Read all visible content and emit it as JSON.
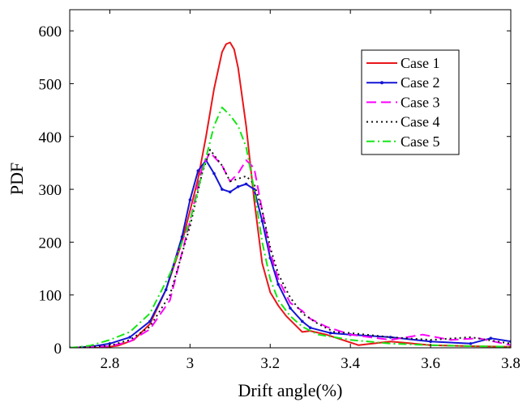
{
  "chart_data": {
    "type": "line",
    "xlabel": "Drift angle(%)",
    "ylabel": "PDF",
    "xlim": [
      2.7,
      3.8
    ],
    "ylim": [
      0,
      640
    ],
    "xticks": [
      2.8,
      3,
      3.2,
      3.4,
      3.6,
      3.8
    ],
    "xtick_labels": [
      "2.8",
      "3",
      "3.2",
      "3.4",
      "3.6",
      "3.8"
    ],
    "yticks": [
      0,
      100,
      200,
      300,
      400,
      500,
      600
    ],
    "ytick_labels": [
      "0",
      "100",
      "200",
      "300",
      "400",
      "500",
      "600"
    ],
    "grid": false,
    "legend_position": "top-right",
    "series": [
      {
        "name": "Case 1",
        "color": "#e8161a",
        "dash": "solid",
        "marker": "none",
        "x": [
          2.7,
          2.78,
          2.82,
          2.86,
          2.9,
          2.94,
          2.98,
          3.0,
          3.02,
          3.04,
          3.06,
          3.08,
          3.09,
          3.1,
          3.11,
          3.12,
          3.14,
          3.16,
          3.18,
          3.2,
          3.22,
          3.24,
          3.26,
          3.28,
          3.3,
          3.34,
          3.38,
          3.42,
          3.5,
          3.6,
          3.7,
          3.8
        ],
        "y": [
          0,
          0,
          4,
          15,
          45,
          110,
          200,
          260,
          320,
          400,
          490,
          560,
          575,
          578,
          565,
          530,
          420,
          280,
          160,
          105,
          80,
          60,
          45,
          30,
          32,
          25,
          15,
          5,
          12,
          5,
          3,
          2
        ]
      },
      {
        "name": "Case 2",
        "color": "#1414d6",
        "dash": "solid",
        "marker": "dot",
        "x": [
          2.7,
          2.75,
          2.8,
          2.85,
          2.9,
          2.94,
          2.98,
          3.0,
          3.02,
          3.04,
          3.06,
          3.08,
          3.1,
          3.12,
          3.14,
          3.16,
          3.18,
          3.2,
          3.22,
          3.25,
          3.28,
          3.3,
          3.35,
          3.4,
          3.5,
          3.6,
          3.7,
          3.75,
          3.8
        ],
        "y": [
          0,
          2,
          8,
          20,
          50,
          110,
          210,
          280,
          335,
          355,
          330,
          300,
          295,
          305,
          310,
          300,
          240,
          170,
          120,
          75,
          50,
          38,
          28,
          25,
          20,
          12,
          8,
          18,
          12
        ]
      },
      {
        "name": "Case 3",
        "color": "#ff00ff",
        "dash": "dashed",
        "marker": "none",
        "x": [
          2.7,
          2.8,
          2.85,
          2.9,
          2.95,
          3.0,
          3.03,
          3.05,
          3.08,
          3.1,
          3.12,
          3.14,
          3.16,
          3.18,
          3.2,
          3.22,
          3.25,
          3.28,
          3.3,
          3.34,
          3.4,
          3.5,
          3.58,
          3.65,
          3.72,
          3.8
        ],
        "y": [
          0,
          3,
          12,
          35,
          90,
          240,
          340,
          370,
          345,
          315,
          330,
          355,
          340,
          260,
          180,
          130,
          85,
          70,
          55,
          40,
          25,
          15,
          25,
          15,
          18,
          5
        ]
      },
      {
        "name": "Case 4",
        "color": "#111111",
        "dash": "dotted",
        "marker": "none",
        "x": [
          2.7,
          2.8,
          2.85,
          2.9,
          2.95,
          3.0,
          3.03,
          3.05,
          3.08,
          3.1,
          3.12,
          3.14,
          3.16,
          3.18,
          3.2,
          3.22,
          3.25,
          3.28,
          3.32,
          3.36,
          3.4,
          3.5,
          3.6,
          3.7,
          3.8
        ],
        "y": [
          0,
          4,
          15,
          40,
          100,
          230,
          330,
          375,
          345,
          315,
          320,
          325,
          310,
          260,
          190,
          140,
          95,
          65,
          45,
          30,
          28,
          20,
          15,
          20,
          8
        ]
      },
      {
        "name": "Case 5",
        "color": "#15e615",
        "dash": "dashdot",
        "marker": "none",
        "x": [
          2.7,
          2.75,
          2.8,
          2.85,
          2.9,
          2.95,
          3.0,
          3.02,
          3.04,
          3.06,
          3.08,
          3.1,
          3.12,
          3.14,
          3.16,
          3.18,
          3.2,
          3.22,
          3.25,
          3.28,
          3.32,
          3.36,
          3.4,
          3.5,
          3.6,
          3.7,
          3.8
        ],
        "y": [
          0,
          4,
          15,
          30,
          65,
          140,
          240,
          300,
          360,
          420,
          455,
          440,
          420,
          380,
          300,
          200,
          130,
          90,
          60,
          40,
          25,
          20,
          15,
          8,
          5,
          3,
          2
        ]
      }
    ]
  }
}
